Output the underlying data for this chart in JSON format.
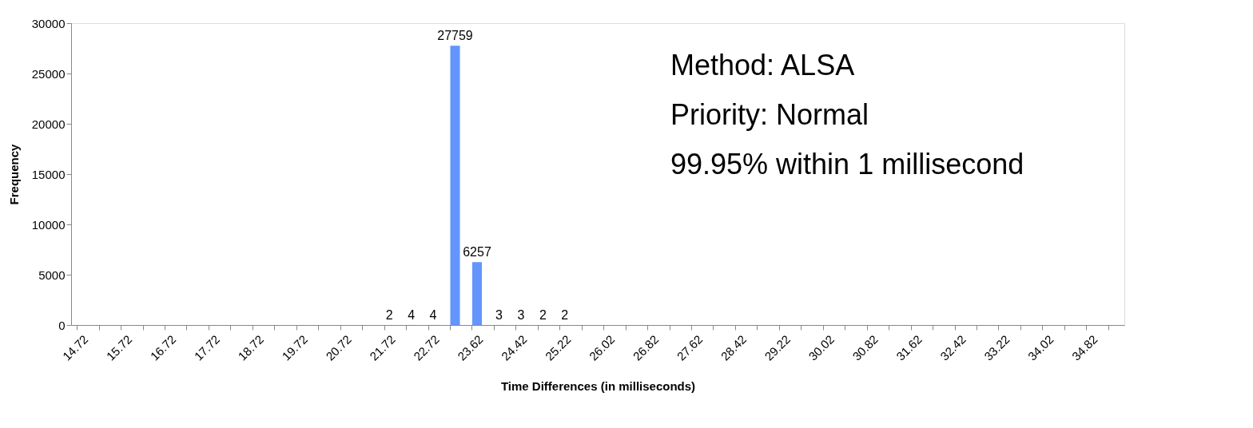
{
  "chart_data": {
    "type": "bar",
    "xlabel": "Time Differences (in milliseconds)",
    "ylabel": "Frequency",
    "categories": [
      "14.72",
      null,
      "15.72",
      null,
      "16.72",
      null,
      "17.72",
      null,
      "18.72",
      null,
      "19.72",
      null,
      "20.72",
      null,
      "21.72",
      null,
      "22.72",
      null,
      "23.62",
      null,
      "24.42",
      null,
      "25.22",
      null,
      "26.02",
      null,
      "26.82",
      null,
      "27.62",
      null,
      "28.42",
      null,
      "29.22",
      null,
      "30.02",
      null,
      "30.82",
      null,
      "31.62",
      null,
      "32.42",
      null,
      "33.22",
      null,
      "34.02",
      null,
      "34.82",
      null
    ],
    "values": [
      0,
      0,
      0,
      0,
      0,
      0,
      0,
      0,
      0,
      0,
      0,
      0,
      0,
      0,
      2,
      4,
      4,
      27759,
      6257,
      3,
      3,
      2,
      2,
      0,
      0,
      0,
      0,
      0,
      0,
      0,
      0,
      0,
      0,
      0,
      0,
      0,
      0,
      0,
      0,
      0,
      0,
      0,
      0,
      0,
      0,
      0,
      0,
      0
    ],
    "value_labels": [
      null,
      null,
      null,
      null,
      null,
      null,
      null,
      null,
      null,
      null,
      null,
      null,
      null,
      null,
      "2",
      "4",
      "4",
      "27759",
      "6257",
      "3",
      "3",
      "2",
      "2",
      null,
      null,
      null,
      null,
      null,
      null,
      null,
      null,
      null,
      null,
      null,
      null,
      null,
      null,
      null,
      null,
      null,
      null,
      null,
      null,
      null,
      null,
      null,
      null,
      null
    ],
    "color": "#6495fc",
    "ylim": [
      0,
      30000
    ],
    "yticks": [
      0,
      5000,
      10000,
      15000,
      20000,
      25000,
      30000
    ],
    "grid": false,
    "annotations": [
      "Method: ALSA",
      "Priority: Normal",
      "99.95% within 1 millisecond"
    ]
  }
}
